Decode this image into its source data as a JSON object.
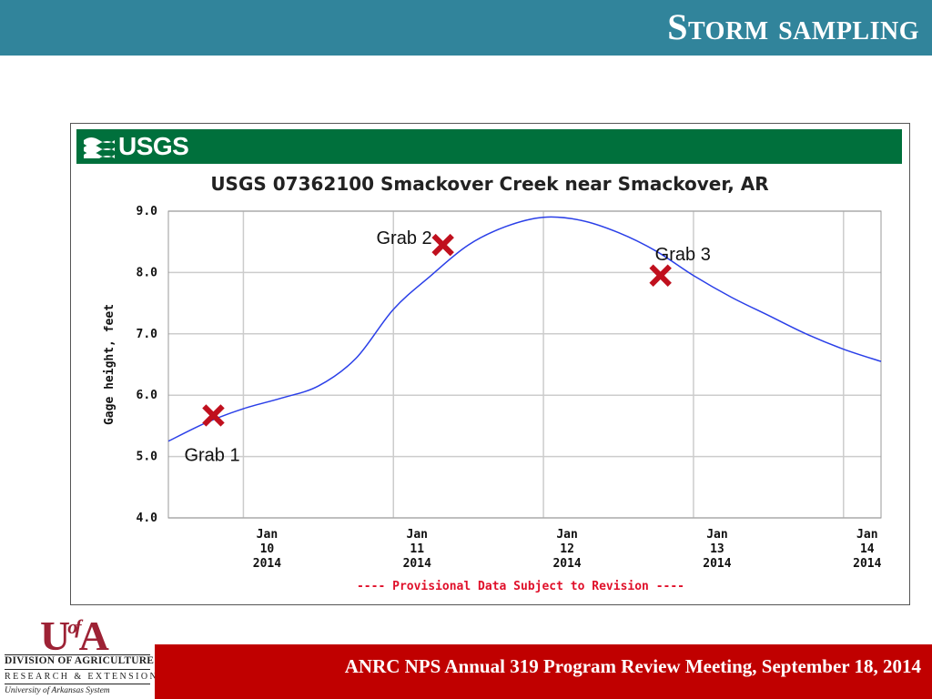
{
  "slide": {
    "title": "Storm sampling",
    "footer": "ANRC NPS Annual 319 Program Review Meeting, September 18, 2014"
  },
  "logo": {
    "usgs_text": "USGS",
    "ua_mark_u": "U",
    "ua_mark_of": "of",
    "ua_mark_a": "A",
    "ua_line1": "DIVISION OF AGRICULTURE",
    "ua_line2": "RESEARCH & EXTENSION",
    "ua_line3": "University of Arkansas System"
  },
  "colors": {
    "header": "#31849b",
    "footer": "#c00000",
    "usgs_green": "#00703c",
    "series": "#2a3fe8",
    "marker": "#c0101e",
    "provisional": "#e0102a"
  },
  "chart_data": {
    "type": "line",
    "title": "USGS 07362100 Smackover Creek near Smackover, AR",
    "ylabel": "Gage height, feet",
    "xlabel": "",
    "ylim": [
      4.0,
      9.0
    ],
    "xlim": [
      9.5,
      14.25
    ],
    "grid": true,
    "yticks": [
      {
        "value": 4.0,
        "label": "4.0"
      },
      {
        "value": 5.0,
        "label": "5.0"
      },
      {
        "value": 6.0,
        "label": "6.0"
      },
      {
        "value": 7.0,
        "label": "7.0"
      },
      {
        "value": 8.0,
        "label": "8.0"
      },
      {
        "value": 9.0,
        "label": "9.0"
      }
    ],
    "xticks": [
      {
        "value": 10,
        "line1": "Jan",
        "line2": "10",
        "line3": "2014"
      },
      {
        "value": 11,
        "line1": "Jan",
        "line2": "11",
        "line3": "2014"
      },
      {
        "value": 12,
        "line1": "Jan",
        "line2": "12",
        "line3": "2014"
      },
      {
        "value": 13,
        "line1": "Jan",
        "line2": "13",
        "line3": "2014"
      },
      {
        "value": 14,
        "line1": "Jan",
        "line2": "14",
        "line3": "2014"
      }
    ],
    "vgrid_x": [
      10.0,
      11.0,
      12.0,
      13.0,
      14.0
    ],
    "series": [
      {
        "x": [
          9.5,
          9.75,
          10.0,
          10.25,
          10.5,
          10.75,
          11.0,
          11.25,
          11.5,
          11.75,
          12.0,
          12.25,
          12.5,
          12.75,
          13.0,
          13.25,
          13.5,
          13.75,
          14.0,
          14.25
        ],
        "y": [
          5.25,
          5.55,
          5.78,
          5.95,
          6.15,
          6.6,
          7.4,
          7.95,
          8.45,
          8.75,
          8.9,
          8.85,
          8.65,
          8.35,
          7.95,
          7.6,
          7.3,
          7.0,
          6.75,
          6.55
        ]
      }
    ],
    "annotations": [
      {
        "label": "Grab 1",
        "x": 9.8,
        "y": 5.67,
        "label_pos": "below-left"
      },
      {
        "label": "Grab 2",
        "x": 11.33,
        "y": 8.45,
        "label_pos": "left"
      },
      {
        "label": "Grab 3",
        "x": 12.78,
        "y": 7.95,
        "label_pos": "above-right"
      }
    ],
    "note": "---- Provisional Data Subject to Revision ----"
  }
}
